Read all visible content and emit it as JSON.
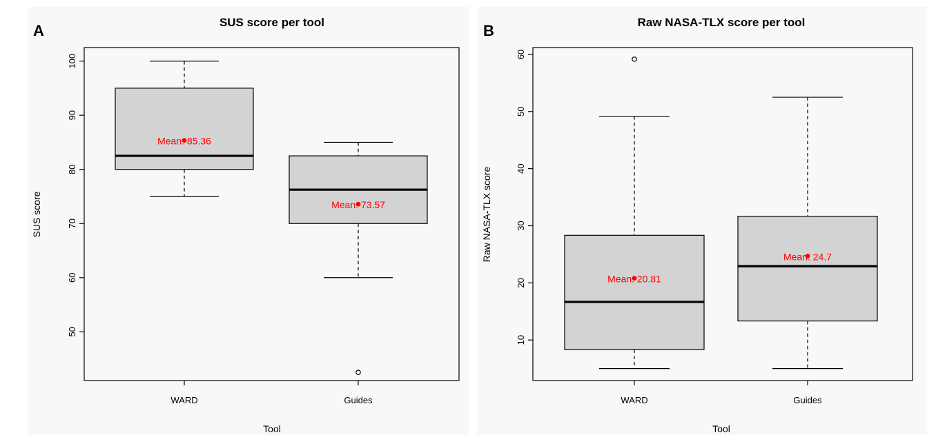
{
  "chart_data": [
    {
      "type": "box",
      "panel_label": "A",
      "title": "SUS score per tool",
      "xlabel": "Tool",
      "ylabel": "SUS score",
      "categories": [
        "WARD",
        "Guides"
      ],
      "yticks": [
        50,
        60,
        70,
        80,
        90,
        100
      ],
      "ylim": [
        41,
        102.5
      ],
      "boxes": [
        {
          "name": "WARD",
          "lower_whisker": 75,
          "q1": 80,
          "median": 82.5,
          "q3": 95,
          "upper_whisker": 100,
          "mean": 85.36,
          "mean_label": "Mean: 85.36",
          "outliers": []
        },
        {
          "name": "Guides",
          "lower_whisker": 60,
          "q1": 70,
          "median": 76.25,
          "q3": 82.5,
          "upper_whisker": 85,
          "mean": 73.57,
          "mean_label": "Mean: 73.57",
          "outliers": [
            42.5
          ]
        }
      ],
      "grid": false,
      "box_color": "#d3d3d3",
      "mean_color": "#ff0000"
    },
    {
      "type": "box",
      "panel_label": "B",
      "title": "Raw NASA-TLX score per tool",
      "xlabel": "Tool",
      "ylabel": "Raw NASA-TLX score",
      "categories": [
        "WARD",
        "Guides"
      ],
      "yticks": [
        10,
        20,
        30,
        40,
        50,
        60
      ],
      "ylim": [
        2.9,
        61.2
      ],
      "boxes": [
        {
          "name": "WARD",
          "lower_whisker": 5,
          "q1": 8.33,
          "median": 16.67,
          "q3": 28.33,
          "upper_whisker": 49.17,
          "mean": 20.81,
          "mean_label": "Mean: 20.81",
          "outliers": [
            59.17
          ]
        },
        {
          "name": "Guides",
          "lower_whisker": 5,
          "q1": 13.33,
          "median": 22.92,
          "q3": 31.67,
          "upper_whisker": 52.5,
          "mean": 24.7,
          "mean_label": "Mean: 24.7",
          "outliers": []
        }
      ],
      "grid": false,
      "box_color": "#d3d3d3",
      "mean_color": "#ff0000"
    }
  ]
}
